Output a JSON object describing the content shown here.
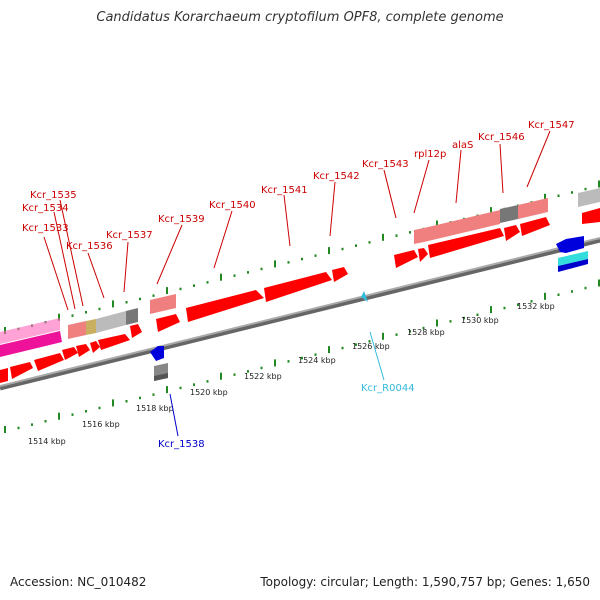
{
  "title": "Candidatus Korarchaeum cryptofilum OPF8, complete genome",
  "footer": {
    "accession": "Accession: NC_010482",
    "summary": "Topology: circular; Length: 1,590,757 bp; Genes: 1,650"
  },
  "colors": {
    "cds": "#ff0000",
    "cds_light": "#f08080",
    "pseudo": "#999999",
    "rna": "#0000cc",
    "trna": "#33bbdd",
    "magenta": "#ee1199",
    "backbone": "#888888",
    "tick": "#228822"
  },
  "ruler": {
    "labels": [
      "1514 kbp",
      "1516 kbp",
      "1518 kbp",
      "1520 kbp",
      "1522 kbp",
      "1524 kbp",
      "1526 kbp",
      "1528 kbp",
      "1530 kbp",
      "1532 kbp"
    ]
  },
  "genes_top": [
    "Kcr_1533",
    "Kcr_1534",
    "Kcr_1535",
    "Kcr_1536",
    "Kcr_1537",
    "Kcr_1539",
    "Kcr_1540",
    "Kcr_1541",
    "Kcr_1542",
    "Kcr_1543",
    "rpl12p",
    "alaS",
    "Kcr_1546",
    "Kcr_1547"
  ],
  "genes_bottom": [
    "Kcr_1538",
    "Kcr_R0044"
  ]
}
